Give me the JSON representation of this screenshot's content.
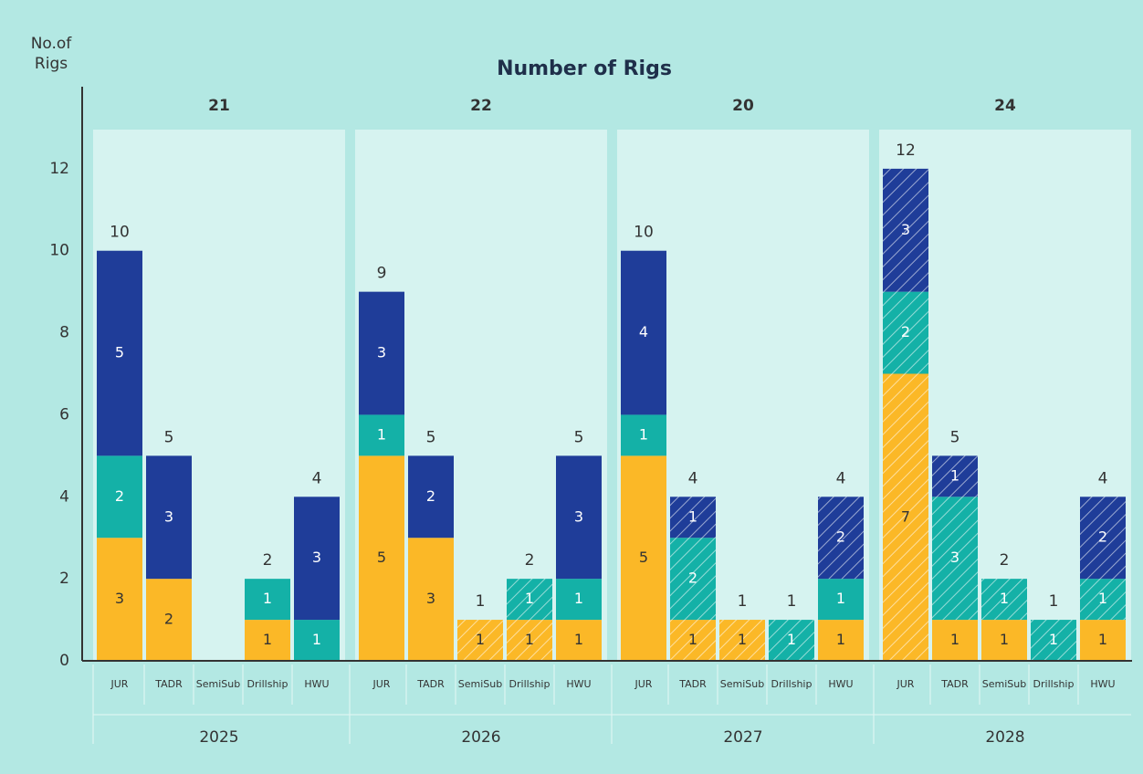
{
  "chart_data": {
    "type": "grouped-stacked-bar",
    "title": "Number of Rigs",
    "y_label_lines": [
      "No.of",
      "Rigs"
    ],
    "groups": [
      "2025",
      "2026",
      "2027",
      "2028"
    ],
    "group_totals": [
      21,
      22,
      20,
      24
    ],
    "categories": [
      "JUR",
      "TADR",
      "SemiSub",
      "Drillship",
      "HWU",
      "JUR",
      "TADR",
      "SemiSub",
      "Drillship",
      "HWU",
      "JUR",
      "TADR",
      "SemiSub",
      "Drillship",
      "HWU",
      "JUR",
      "TADR",
      "SemiSub",
      "Drillship",
      "HWU"
    ],
    "totals": [
      10,
      5,
      null,
      2,
      4,
      9,
      5,
      1,
      2,
      5,
      10,
      4,
      1,
      1,
      4,
      12,
      5,
      2,
      1,
      4
    ],
    "series": [
      {
        "color": "#fbb827",
        "label_color": "#333333",
        "values": [
          3,
          2,
          null,
          1,
          null,
          5,
          3,
          1,
          1,
          1,
          5,
          1,
          1,
          null,
          1,
          7,
          1,
          1,
          null,
          1
        ],
        "hatched": [
          false,
          false,
          false,
          false,
          false,
          false,
          false,
          true,
          true,
          false,
          false,
          true,
          true,
          false,
          false,
          true,
          false,
          false,
          false,
          false
        ]
      },
      {
        "color": "#14b1a7",
        "label_color": "#ffffff",
        "values": [
          2,
          null,
          null,
          1,
          1,
          1,
          null,
          null,
          1,
          1,
          1,
          2,
          null,
          1,
          1,
          2,
          3,
          1,
          1,
          1
        ],
        "hatched": [
          false,
          false,
          false,
          false,
          false,
          false,
          false,
          false,
          true,
          false,
          false,
          true,
          false,
          true,
          false,
          true,
          true,
          true,
          true,
          true
        ]
      },
      {
        "color": "#1f3d99",
        "label_color": "#ffffff",
        "values": [
          5,
          3,
          null,
          null,
          3,
          3,
          2,
          null,
          null,
          3,
          4,
          1,
          null,
          null,
          2,
          3,
          1,
          null,
          null,
          2
        ],
        "hatched": [
          false,
          false,
          false,
          false,
          false,
          false,
          false,
          false,
          false,
          false,
          false,
          true,
          false,
          false,
          true,
          true,
          true,
          false,
          false,
          true
        ]
      }
    ],
    "ylim": [
      0,
      14
    ],
    "yticks": [
      0,
      2,
      4,
      6,
      8,
      10,
      12
    ],
    "grid": false
  }
}
